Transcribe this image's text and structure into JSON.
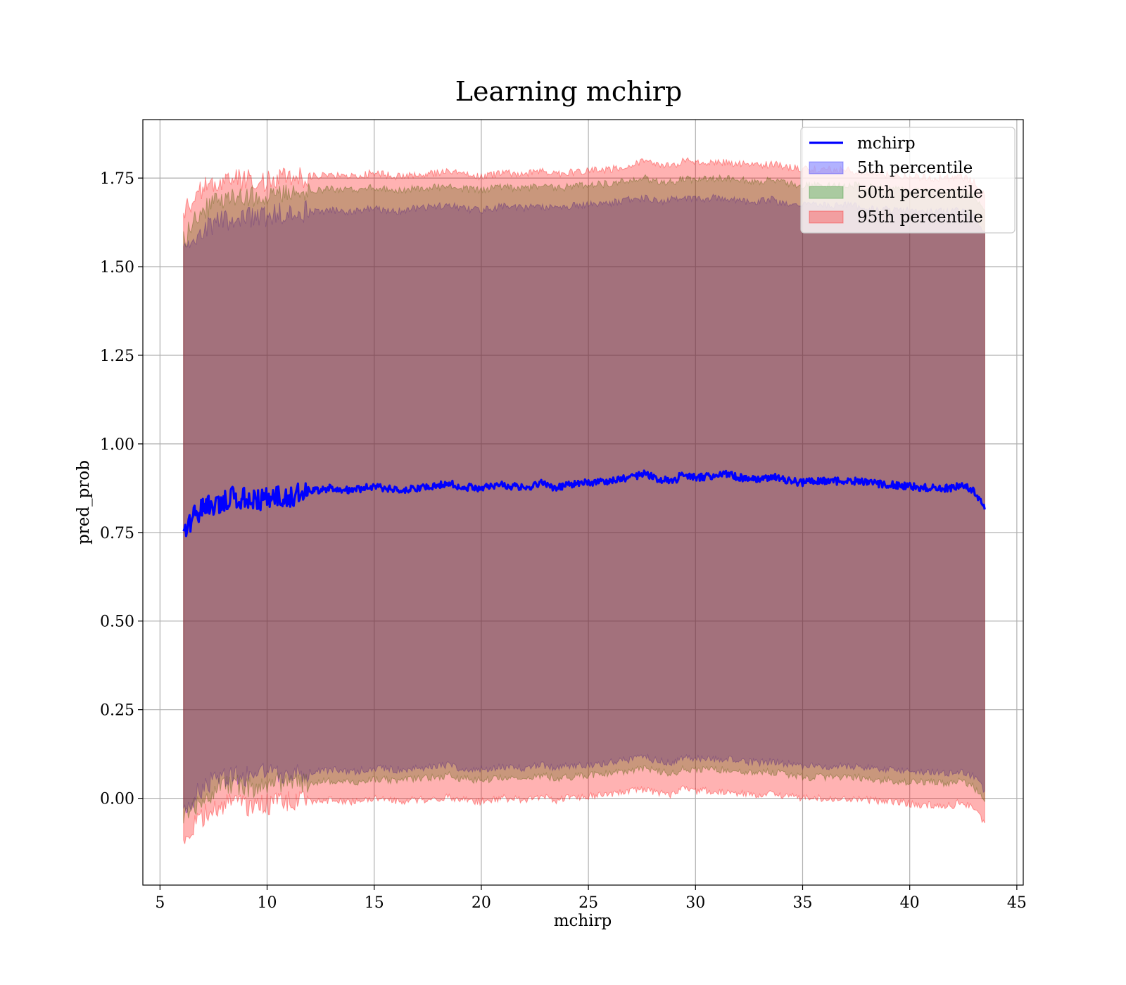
{
  "chart_data": {
    "type": "area",
    "title": "Learning mchirp",
    "xlabel": "mchirp",
    "ylabel": "pred_prob",
    "xlim": [
      4.2,
      45.3
    ],
    "ylim": [
      -0.245,
      1.915
    ],
    "xticks": [
      5,
      10,
      15,
      20,
      25,
      30,
      35,
      40,
      45
    ],
    "xtick_labels": [
      "5",
      "10",
      "15",
      "20",
      "25",
      "30",
      "35",
      "40",
      "45"
    ],
    "yticks": [
      0.0,
      0.25,
      0.5,
      0.75,
      1.0,
      1.25,
      1.5,
      1.75
    ],
    "ytick_labels": [
      "0.00",
      "0.25",
      "0.50",
      "0.75",
      "1.00",
      "1.25",
      "1.50",
      "1.75"
    ],
    "grid": true,
    "legend_position": "top-right",
    "legend": [
      {
        "label": "mchirp",
        "kind": "line",
        "color": "#0000ff"
      },
      {
        "label": "5th percentile",
        "kind": "patch",
        "color": "#0000ff"
      },
      {
        "label": "50th percentile",
        "kind": "patch",
        "color": "#008000"
      },
      {
        "label": "95th percentile",
        "kind": "patch",
        "color": "#ff0000"
      }
    ],
    "x": [
      6.1,
      6.5,
      7,
      7.5,
      8,
      8.5,
      9,
      9.5,
      10,
      11,
      12,
      13,
      14,
      15,
      16,
      17,
      18,
      18.5,
      19,
      20,
      21,
      22,
      22.8,
      23.5,
      24,
      25,
      26,
      27,
      27.6,
      28.3,
      29,
      29.4,
      30,
      31,
      31.5,
      32,
      33,
      33.6,
      34,
      35,
      35.5,
      36,
      37,
      37.5,
      38,
      39,
      40,
      41,
      42,
      42.4,
      43,
      43.5
    ],
    "series": [
      {
        "name": "mchirp",
        "type": "line",
        "color": "#0000ff",
        "values": [
          0.76,
          0.79,
          0.82,
          0.83,
          0.84,
          0.85,
          0.845,
          0.84,
          0.85,
          0.85,
          0.865,
          0.875,
          0.87,
          0.88,
          0.87,
          0.875,
          0.885,
          0.89,
          0.88,
          0.875,
          0.885,
          0.875,
          0.89,
          0.875,
          0.885,
          0.89,
          0.895,
          0.905,
          0.915,
          0.9,
          0.895,
          0.915,
          0.905,
          0.91,
          0.915,
          0.905,
          0.9,
          0.91,
          0.9,
          0.89,
          0.895,
          0.895,
          0.895,
          0.895,
          0.89,
          0.885,
          0.88,
          0.875,
          0.875,
          0.885,
          0.865,
          0.815
        ]
      },
      {
        "name": "5th percentile",
        "type": "band",
        "color": "#0000ff",
        "upper": [
          1.53,
          1.57,
          1.6,
          1.62,
          1.63,
          1.64,
          1.645,
          1.635,
          1.645,
          1.655,
          1.655,
          1.66,
          1.655,
          1.665,
          1.655,
          1.665,
          1.67,
          1.675,
          1.665,
          1.66,
          1.67,
          1.665,
          1.67,
          1.665,
          1.67,
          1.675,
          1.68,
          1.69,
          1.695,
          1.685,
          1.69,
          1.695,
          1.69,
          1.695,
          1.69,
          1.685,
          1.685,
          1.69,
          1.68,
          1.675,
          1.675,
          1.675,
          1.675,
          1.67,
          1.665,
          1.66,
          1.66,
          1.655,
          1.655,
          1.66,
          1.645,
          1.6
        ],
        "lower": [
          -0.04,
          0.0,
          0.03,
          0.05,
          0.06,
          0.07,
          0.06,
          0.06,
          0.07,
          0.07,
          0.075,
          0.08,
          0.075,
          0.085,
          0.08,
          0.085,
          0.09,
          0.095,
          0.085,
          0.08,
          0.09,
          0.085,
          0.095,
          0.085,
          0.09,
          0.095,
          0.1,
          0.11,
          0.115,
          0.105,
          0.1,
          0.115,
          0.11,
          0.11,
          0.11,
          0.105,
          0.1,
          0.105,
          0.1,
          0.09,
          0.09,
          0.09,
          0.09,
          0.09,
          0.085,
          0.08,
          0.075,
          0.075,
          0.07,
          0.08,
          0.06,
          0.02
        ]
      },
      {
        "name": "50th percentile",
        "type": "band",
        "color": "#008000",
        "upper": [
          1.57,
          1.62,
          1.66,
          1.68,
          1.69,
          1.7,
          1.7,
          1.695,
          1.7,
          1.71,
          1.715,
          1.72,
          1.715,
          1.725,
          1.715,
          1.72,
          1.725,
          1.73,
          1.72,
          1.715,
          1.725,
          1.72,
          1.73,
          1.72,
          1.725,
          1.73,
          1.735,
          1.745,
          1.75,
          1.74,
          1.74,
          1.75,
          1.745,
          1.75,
          1.75,
          1.745,
          1.74,
          1.745,
          1.74,
          1.73,
          1.73,
          1.73,
          1.73,
          1.73,
          1.725,
          1.72,
          1.715,
          1.71,
          1.71,
          1.715,
          1.7,
          1.66
        ]
      },
      {
        "name": "95th percentile",
        "type": "band",
        "color": "#ff0000",
        "upper": [
          1.66,
          1.69,
          1.72,
          1.73,
          1.74,
          1.745,
          1.745,
          1.74,
          1.745,
          1.75,
          1.755,
          1.76,
          1.755,
          1.765,
          1.755,
          1.76,
          1.765,
          1.77,
          1.76,
          1.755,
          1.765,
          1.76,
          1.77,
          1.76,
          1.765,
          1.77,
          1.775,
          1.785,
          1.8,
          1.785,
          1.785,
          1.8,
          1.795,
          1.795,
          1.795,
          1.79,
          1.785,
          1.79,
          1.785,
          1.775,
          1.775,
          1.775,
          1.775,
          1.77,
          1.765,
          1.76,
          1.755,
          1.75,
          1.75,
          1.755,
          1.74,
          1.7
        ],
        "lower": [
          -0.13,
          -0.08,
          -0.05,
          -0.03,
          -0.02,
          -0.015,
          -0.02,
          -0.02,
          -0.015,
          -0.01,
          -0.01,
          -0.005,
          -0.01,
          0.0,
          -0.01,
          -0.005,
          0.0,
          0.005,
          -0.005,
          -0.01,
          0.0,
          -0.005,
          0.005,
          -0.005,
          0.0,
          0.005,
          0.01,
          0.02,
          0.025,
          0.015,
          0.01,
          0.025,
          0.02,
          0.02,
          0.02,
          0.015,
          0.01,
          0.015,
          0.01,
          0.0,
          0.0,
          0.0,
          0.0,
          0.0,
          -0.005,
          -0.01,
          -0.015,
          -0.02,
          -0.02,
          -0.01,
          -0.03,
          -0.07
        ]
      }
    ]
  }
}
